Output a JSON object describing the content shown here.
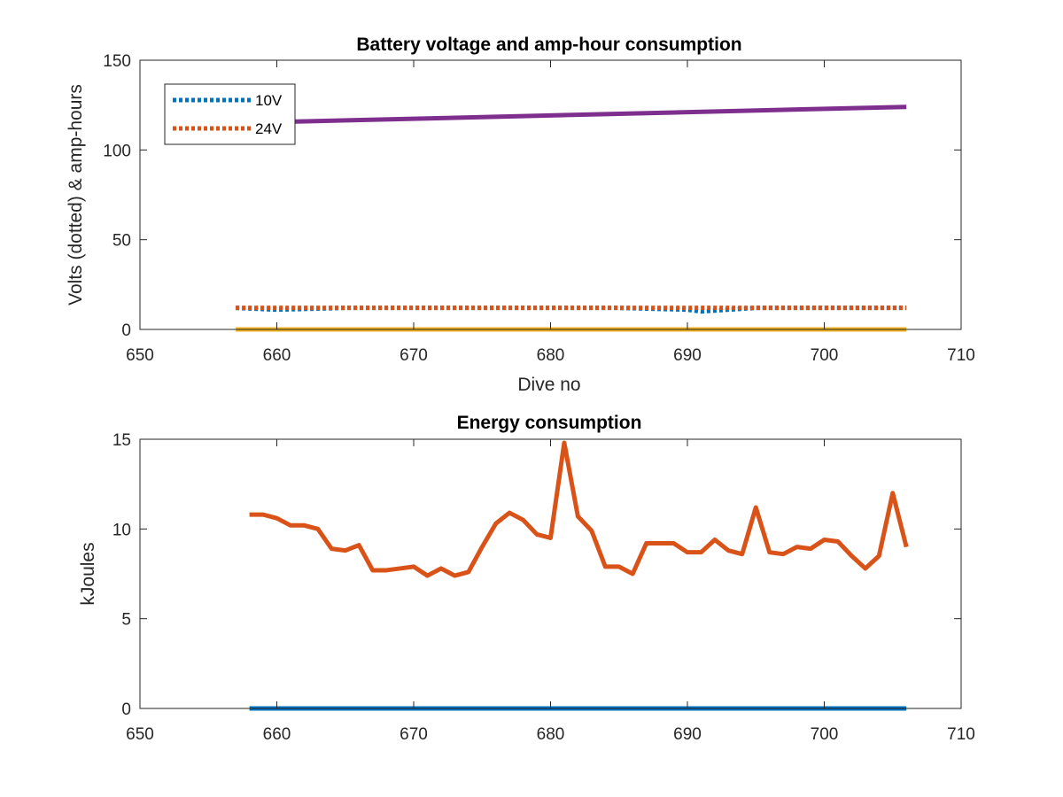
{
  "colors": {
    "blue": "#0072BD",
    "orange": "#D95319",
    "yellow": "#EDB120",
    "purple": "#7E2F8E",
    "axis": "#262626"
  },
  "chart_data": [
    {
      "type": "line",
      "title": "Battery voltage and amp-hour consumption",
      "xlabel": "Dive no",
      "ylabel": "Volts (dotted) & amp-hours",
      "xlim": [
        650,
        710
      ],
      "ylim": [
        0,
        150
      ],
      "xticks": [
        "650",
        "660",
        "670",
        "680",
        "690",
        "700",
        "710"
      ],
      "yticks": [
        "0",
        "50",
        "100",
        "150"
      ],
      "grid": false,
      "legend": {
        "placement": "top-left",
        "entries": [
          "10V",
          "24V"
        ]
      },
      "series": [
        {
          "name": "10V",
          "style": "dotted",
          "color": "#0072BD",
          "x": [
            657,
            660,
            665,
            670,
            675,
            680,
            685,
            690,
            691,
            695,
            700,
            706
          ],
          "y": [
            12,
            11,
            12,
            12,
            12,
            12,
            12,
            11,
            10,
            12,
            12,
            12
          ]
        },
        {
          "name": "24V",
          "style": "dotted",
          "color": "#D95319",
          "x": [
            657,
            706
          ],
          "y": [
            12,
            12
          ]
        },
        {
          "style": "solid",
          "color": "#7E2F8E",
          "x": [
            657,
            706
          ],
          "y": [
            115,
            124
          ]
        },
        {
          "style": "solid",
          "color": "#EDB120",
          "x": [
            657,
            706
          ],
          "y": [
            0,
            0
          ]
        }
      ]
    },
    {
      "type": "line",
      "title": "Energy consumption",
      "xlabel": "",
      "ylabel": "kJoules",
      "xlim": [
        650,
        710
      ],
      "ylim": [
        0,
        15
      ],
      "xticks": [
        "650",
        "660",
        "670",
        "680",
        "690",
        "700",
        "710"
      ],
      "yticks": [
        "0",
        "5",
        "10",
        "15"
      ],
      "grid": false,
      "series": [
        {
          "style": "solid",
          "color": "#D95319",
          "x": [
            658,
            659,
            660,
            661,
            662,
            663,
            664,
            665,
            666,
            667,
            668,
            669,
            670,
            671,
            672,
            673,
            674,
            675,
            676,
            677,
            678,
            679,
            680,
            681,
            682,
            683,
            684,
            685,
            686,
            687,
            688,
            689,
            690,
            691,
            692,
            693,
            694,
            695,
            696,
            697,
            698,
            699,
            700,
            701,
            702,
            703,
            704,
            705,
            706
          ],
          "y": [
            10.8,
            10.8,
            10.6,
            10.2,
            10.2,
            10.0,
            8.9,
            8.8,
            9.1,
            7.7,
            7.7,
            7.8,
            7.9,
            7.4,
            7.8,
            7.4,
            7.6,
            9.0,
            10.3,
            10.9,
            10.5,
            9.7,
            9.5,
            14.8,
            10.7,
            9.9,
            7.9,
            7.9,
            7.5,
            9.2,
            9.2,
            9.2,
            8.7,
            8.7,
            9.4,
            8.8,
            8.6,
            11.2,
            8.7,
            8.6,
            9.0,
            8.9,
            9.4,
            9.3,
            8.5,
            7.8,
            8.5,
            12.0,
            9.0
          ]
        },
        {
          "style": "solid",
          "color": "#0072BD",
          "x": [
            658,
            706
          ],
          "y": [
            0,
            0
          ]
        }
      ]
    }
  ]
}
